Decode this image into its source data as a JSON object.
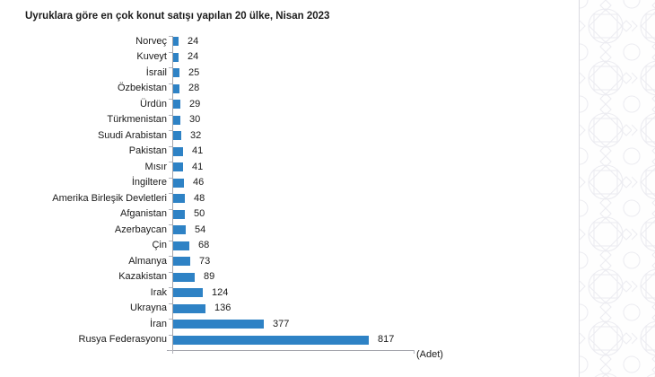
{
  "chart_data": {
    "type": "bar",
    "orientation": "horizontal",
    "title": "Uyruklara göre en çok konut satışı yapılan 20 ülke, Nisan 2023",
    "categories": [
      "Norveç",
      "Kuveyt",
      "İsrail",
      "Özbekistan",
      "Ürdün",
      "Türkmenistan",
      "Suudi Arabistan",
      "Pakistan",
      "Mısır",
      "İngiltere",
      "Amerika Birleşik Devletleri",
      "Afganistan",
      "Azerbaycan",
      "Çin",
      "Almanya",
      "Kazakistan",
      "Irak",
      "Ukrayna",
      "İran",
      "Rusya Federasyonu"
    ],
    "values": [
      24,
      24,
      25,
      28,
      29,
      30,
      32,
      41,
      41,
      46,
      48,
      50,
      54,
      68,
      73,
      89,
      124,
      136,
      377,
      817
    ],
    "xlabel": "(Adet)",
    "ylabel": "",
    "xlim": [
      0,
      1000
    ],
    "grid": false,
    "legend": "none",
    "value_labels": "end-of-bar"
  },
  "colors": {
    "bar": "#2e82c5",
    "axis": "#a3a4ab",
    "tick": "#b2b3ba",
    "text": "#1a1a1a",
    "pattern_line": "#ececf1",
    "pattern_border": "#dbdbe1"
  }
}
